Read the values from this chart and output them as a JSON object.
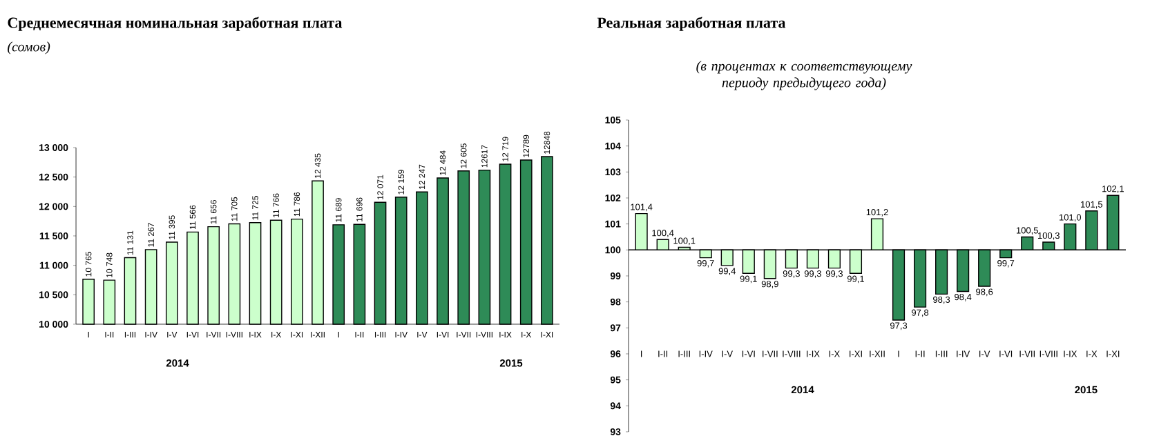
{
  "chart_data": [
    {
      "type": "bar",
      "title": "Среднемесячная номинальная заработная плата",
      "subtitle": "(сомов)",
      "categories": [
        "I",
        "I-II",
        "I-III",
        "I-IV",
        "I-V",
        "I-VI",
        "I-VII",
        "I-VIII",
        "I-IX",
        "I-X",
        "I-XI",
        "I-XII",
        "I",
        "I-II",
        "I-III",
        "I-IV",
        "I-V",
        "I-VI",
        "I-VII",
        "I-VIII",
        "I-IX",
        "I-X",
        "I-XI"
      ],
      "values": [
        10765,
        10748,
        11131,
        11267,
        11395,
        11566,
        11656,
        11705,
        11725,
        11766,
        11786,
        12435,
        11689,
        11696,
        12071,
        12159,
        12247,
        12484,
        12605,
        12617,
        12719,
        12789,
        12848
      ],
      "value_labels": [
        "10 765",
        "10 748",
        "11 131",
        "11 267",
        "11 395",
        "11 566",
        "11 656",
        "11 705",
        "11 725",
        "11 766",
        "11 786",
        "12 435",
        "11 689",
        "11 696",
        "12 071",
        "12 159",
        "12 247",
        "12 484",
        "12 605",
        "12617",
        "12 719",
        "12789",
        "12848"
      ],
      "colors": [
        "#ccffcc",
        "#ccffcc",
        "#ccffcc",
        "#ccffcc",
        "#ccffcc",
        "#ccffcc",
        "#ccffcc",
        "#ccffcc",
        "#ccffcc",
        "#ccffcc",
        "#ccffcc",
        "#ccffcc",
        "#2e8b57",
        "#2e8b57",
        "#2e8b57",
        "#2e8b57",
        "#2e8b57",
        "#2e8b57",
        "#2e8b57",
        "#2e8b57",
        "#2e8b57",
        "#2e8b57",
        "#2e8b57"
      ],
      "ylim": [
        10000,
        13000
      ],
      "yticks": [
        {
          "value": 10000,
          "label": "10 000"
        },
        {
          "value": 10500,
          "label": "10 500"
        },
        {
          "value": 11000,
          "label": "11 000"
        },
        {
          "value": 11500,
          "label": "11 500"
        },
        {
          "value": 12000,
          "label": "12 000"
        },
        {
          "value": 12500,
          "label": "12 500"
        },
        {
          "value": 13000,
          "label": "13 000"
        }
      ],
      "annotations": [
        "2014",
        "2015"
      ]
    },
    {
      "type": "bar",
      "title": "Реальная заработная плата",
      "subtitle": "(в процентах к соответствующему периоду предыдущего года)",
      "categories": [
        "I",
        "I-II",
        "I-III",
        "I-IV",
        "I-V",
        "I-VI",
        "I-VII",
        "I-VIII",
        "I-IX",
        "I-X",
        "I-XI",
        "I-XII",
        "I",
        "I-II",
        "I-III",
        "I-IV",
        "I-V",
        "I-VI",
        "I-VII",
        "I-VIII",
        "I-IX",
        "I-X",
        "I-XI"
      ],
      "values": [
        1.4,
        0.4,
        0.1,
        -0.3,
        -0.6,
        -0.9,
        -1.1,
        -0.7,
        -0.7,
        -0.7,
        -0.9,
        1.2,
        -2.7,
        -2.2,
        -1.7,
        -1.6,
        -1.4,
        -0.3,
        0.5,
        0.3,
        1.0,
        1.5,
        2.1
      ],
      "base": [
        100,
        100,
        100,
        100,
        100,
        100,
        100,
        100,
        100,
        100,
        100,
        100,
        100,
        100,
        100,
        100,
        100,
        100,
        100,
        100,
        100,
        100,
        100
      ],
      "value_labels": [
        "101,4",
        "100,4",
        "100,1",
        "99,7",
        "99,4",
        "99,1",
        "98,9",
        "99,3",
        "99,3",
        "99,3",
        "99,1",
        "101,2",
        "97,3",
        "97,8",
        "98,3",
        "98,4",
        "98,6",
        "99,7",
        "100,5",
        "100,3",
        "101,0",
        "101,5",
        "102,1"
      ],
      "colors": [
        "#ccffcc",
        "#ccffcc",
        "#ccffcc",
        "#ccffcc",
        "#ccffcc",
        "#ccffcc",
        "#ccffcc",
        "#ccffcc",
        "#ccffcc",
        "#ccffcc",
        "#ccffcc",
        "#ccffcc",
        "#2e8b57",
        "#2e8b57",
        "#2e8b57",
        "#2e8b57",
        "#2e8b57",
        "#2e8b57",
        "#2e8b57",
        "#2e8b57",
        "#2e8b57",
        "#2e8b57",
        "#2e8b57"
      ],
      "ylim": [
        93,
        105
      ],
      "yticks": [
        93,
        94,
        95,
        96,
        97,
        98,
        99,
        100,
        101,
        102,
        103,
        104,
        105
      ],
      "ref_lines": [
        {
          "axis": "y",
          "value": 100
        }
      ],
      "annotations": [
        "2014",
        "2015"
      ]
    }
  ]
}
